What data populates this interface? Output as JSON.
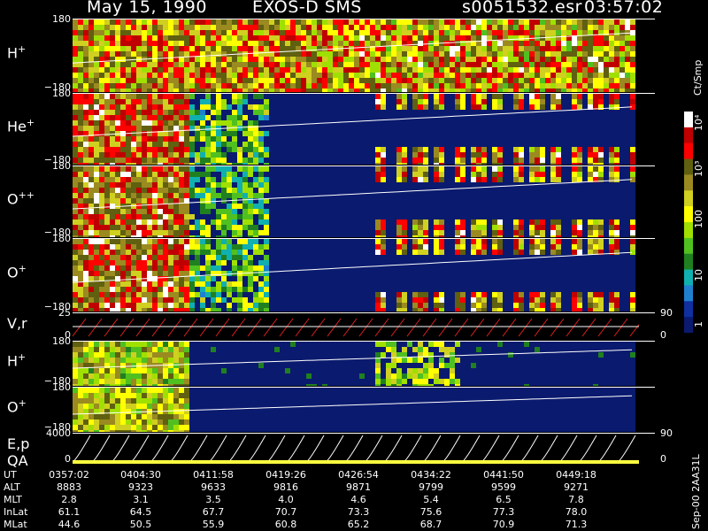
{
  "header": {
    "date": "May 15, 1990",
    "instrument": "EXOS-D SMS",
    "file": "s0051532.esr",
    "time": "03:57:02"
  },
  "colorbar": {
    "units": "Ct/Smp",
    "ticks": [
      "10⁴",
      "10³",
      "100",
      "10",
      "1"
    ],
    "colors": [
      "#ffffff",
      "#c00000",
      "#ff0000",
      "#606010",
      "#9a8a20",
      "#d0d020",
      "#ffff00",
      "#a0e000",
      "#50c020",
      "#208020",
      "#10b0b0",
      "#2080d0",
      "#1030a0",
      "#0a1a6e"
    ]
  },
  "panels": [
    {
      "id": "h-plus",
      "label": "H",
      "sup": "+",
      "ymax": "180",
      "ymin": "−180",
      "kind": "spec"
    },
    {
      "id": "he-plus",
      "label": "He",
      "sup": "+",
      "ymax": "180",
      "ymin": "−180",
      "kind": "spec"
    },
    {
      "id": "o-plusplus",
      "label": "O",
      "sup": "++",
      "ymax": "180",
      "ymin": "−180",
      "kind": "spec"
    },
    {
      "id": "o-plus",
      "label": "O",
      "sup": "+",
      "ymax": "180",
      "ymin": "−180",
      "kind": "spec"
    },
    {
      "id": "vr",
      "label": "V,r",
      "sup": "",
      "ymax": "25",
      "ymin": "0",
      "rmax": "90",
      "rmin": "0",
      "kind": "line"
    },
    {
      "id": "h-plus-2",
      "label": "H",
      "sup": "+",
      "ymax": "180",
      "ymin": "−180",
      "kind": "spec"
    },
    {
      "id": "o-plus-2",
      "label": "O",
      "sup": "+",
      "ymax": "180",
      "ymin": "−180",
      "kind": "spec"
    },
    {
      "id": "ep-qa",
      "label": "E,p",
      "label2": "QA",
      "sup": "",
      "ymax": "4000",
      "ymin": "0",
      "rmax": "90",
      "rmin": "0",
      "kind": "ep"
    }
  ],
  "ephemeris": {
    "rows": [
      {
        "name": "UT",
        "values": [
          "0357:02",
          "0404:30",
          "0411:58",
          "0419:26",
          "0426:54",
          "0434:22",
          "0441:50",
          "0449:18"
        ]
      },
      {
        "name": "ALT",
        "values": [
          "8883",
          "9323",
          "9633",
          "9816",
          "9871",
          "9799",
          "9599",
          "9271"
        ]
      },
      {
        "name": "MLT",
        "values": [
          "2.8",
          "3.1",
          "3.5",
          "4.0",
          "4.6",
          "5.4",
          "6.5",
          "7.8"
        ]
      },
      {
        "name": "InLat",
        "values": [
          "61.1",
          "64.5",
          "67.7",
          "70.7",
          "73.3",
          "75.6",
          "77.3",
          "78.0"
        ]
      },
      {
        "name": "MLat",
        "values": [
          "44.6",
          "50.5",
          "55.9",
          "60.8",
          "65.2",
          "68.7",
          "70.9",
          "71.3"
        ]
      }
    ]
  },
  "footer_label": "Sep-00 2AA31L",
  "chart_data": {
    "type": "heatmap",
    "title": "May 15, 1990 EXOS-D SMS",
    "x": [
      "0357:02",
      "0404:30",
      "0411:58",
      "0419:26",
      "0426:54",
      "0434:22",
      "0441:50",
      "0449:18"
    ],
    "series": [
      {
        "name": "H+",
        "ylim": [
          -180,
          180
        ]
      },
      {
        "name": "He+",
        "ylim": [
          -180,
          180
        ]
      },
      {
        "name": "O++",
        "ylim": [
          -180,
          180
        ]
      },
      {
        "name": "O+",
        "ylim": [
          -180,
          180
        ]
      },
      {
        "name": "V,r",
        "ylim": [
          0,
          25
        ],
        "rlim": [
          0,
          90
        ]
      },
      {
        "name": "H+",
        "ylim": [
          -180,
          180
        ]
      },
      {
        "name": "O+",
        "ylim": [
          -180,
          180
        ]
      },
      {
        "name": "E,p",
        "ylim": [
          0,
          4000
        ],
        "rlim": [
          0,
          90
        ]
      }
    ],
    "colorscale": {
      "label": "Ct/Smp",
      "ticks": [
        "1",
        "10",
        "100",
        "10³",
        "10⁴"
      ]
    }
  }
}
